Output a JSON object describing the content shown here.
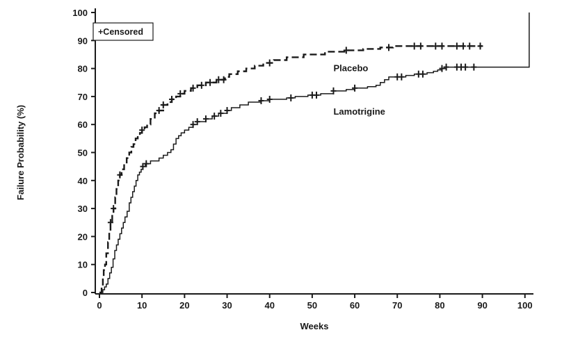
{
  "colors": {
    "line": "#1a1a1a",
    "background": "#ffffff"
  },
  "chart_data": {
    "type": "line",
    "title": "",
    "xlabel": "Weeks",
    "ylabel": "Failure Probability (%)",
    "xlim": [
      0,
      102
    ],
    "ylim": [
      0,
      100
    ],
    "xticks": [
      0,
      10,
      20,
      30,
      40,
      50,
      60,
      70,
      80,
      90,
      100
    ],
    "yticks": [
      0,
      10,
      20,
      30,
      40,
      50,
      60,
      70,
      80,
      90,
      100
    ],
    "grid": false,
    "legend": {
      "position": "top-left",
      "censored_label": "+Censored"
    },
    "series": [
      {
        "name": "Placebo",
        "style": "dashed",
        "label": "Placebo",
        "label_pos": [
          55,
          79
        ],
        "points": [
          [
            0,
            0
          ],
          [
            0.5,
            2
          ],
          [
            0.8,
            5
          ],
          [
            1,
            8
          ],
          [
            1.3,
            10
          ],
          [
            1.6,
            14
          ],
          [
            2,
            18
          ],
          [
            2.3,
            22
          ],
          [
            2.6,
            25
          ],
          [
            3,
            28
          ],
          [
            3.3,
            30
          ],
          [
            3.7,
            34
          ],
          [
            4,
            37
          ],
          [
            4.4,
            40
          ],
          [
            4.8,
            42
          ],
          [
            5.2,
            44
          ],
          [
            5.8,
            46
          ],
          [
            6.4,
            48
          ],
          [
            7,
            50
          ],
          [
            7.5,
            52
          ],
          [
            8,
            53
          ],
          [
            8.5,
            55
          ],
          [
            9,
            56
          ],
          [
            9.5,
            57
          ],
          [
            10,
            58
          ],
          [
            10.6,
            59
          ],
          [
            11.2,
            60
          ],
          [
            12,
            62
          ],
          [
            13,
            64
          ],
          [
            14,
            65
          ],
          [
            15,
            67
          ],
          [
            16,
            68
          ],
          [
            17,
            69
          ],
          [
            18,
            70
          ],
          [
            19,
            71
          ],
          [
            20,
            72
          ],
          [
            21.5,
            73
          ],
          [
            23,
            74
          ],
          [
            25,
            75
          ],
          [
            27.5,
            76
          ],
          [
            29.5,
            77
          ],
          [
            30.5,
            78
          ],
          [
            32.5,
            79
          ],
          [
            34.5,
            80
          ],
          [
            36.5,
            81
          ],
          [
            38.5,
            82
          ],
          [
            41,
            83
          ],
          [
            44,
            84
          ],
          [
            48,
            85
          ],
          [
            53,
            86
          ],
          [
            58,
            86.5
          ],
          [
            62,
            87
          ],
          [
            66,
            87.5
          ],
          [
            69,
            88
          ],
          [
            90,
            88
          ]
        ],
        "censors": [
          [
            2.6,
            25
          ],
          [
            3.3,
            30
          ],
          [
            4.8,
            42
          ],
          [
            10,
            58
          ],
          [
            14,
            65
          ],
          [
            15,
            67
          ],
          [
            17,
            69
          ],
          [
            19,
            71
          ],
          [
            22,
            73
          ],
          [
            24,
            74
          ],
          [
            26,
            75
          ],
          [
            28,
            76
          ],
          [
            29.2,
            76
          ],
          [
            40,
            82
          ],
          [
            58,
            86.5
          ],
          [
            68,
            87.5
          ],
          [
            74,
            88
          ],
          [
            75.5,
            88
          ],
          [
            79,
            88
          ],
          [
            80.5,
            88
          ],
          [
            84,
            88
          ],
          [
            85.5,
            88
          ],
          [
            87,
            88
          ],
          [
            89.5,
            88
          ]
        ]
      },
      {
        "name": "Lamotrigine",
        "style": "solid",
        "label": "Lamotrigine",
        "label_pos": [
          55,
          63.5
        ],
        "points": [
          [
            0,
            0
          ],
          [
            0.8,
            1
          ],
          [
            1.2,
            2
          ],
          [
            1.6,
            3
          ],
          [
            2,
            5
          ],
          [
            2.4,
            7
          ],
          [
            2.8,
            9
          ],
          [
            3.2,
            12
          ],
          [
            3.6,
            15
          ],
          [
            4,
            17
          ],
          [
            4.4,
            19
          ],
          [
            4.8,
            21
          ],
          [
            5.2,
            23
          ],
          [
            5.6,
            25
          ],
          [
            6,
            27
          ],
          [
            6.5,
            29
          ],
          [
            7,
            32
          ],
          [
            7.4,
            34
          ],
          [
            7.8,
            36
          ],
          [
            8.2,
            38
          ],
          [
            8.6,
            40
          ],
          [
            9,
            42
          ],
          [
            9.4,
            43
          ],
          [
            9.8,
            44
          ],
          [
            10.2,
            45
          ],
          [
            10.8,
            46
          ],
          [
            12,
            47
          ],
          [
            14,
            48
          ],
          [
            15,
            49
          ],
          [
            16,
            50
          ],
          [
            16.8,
            51
          ],
          [
            17.4,
            53
          ],
          [
            18,
            55
          ],
          [
            18.6,
            56
          ],
          [
            19.2,
            57
          ],
          [
            20,
            58
          ],
          [
            21,
            59
          ],
          [
            22,
            60
          ],
          [
            23,
            61
          ],
          [
            25,
            62
          ],
          [
            26.5,
            63
          ],
          [
            28,
            64
          ],
          [
            30,
            65
          ],
          [
            31,
            66
          ],
          [
            33,
            67
          ],
          [
            35,
            68
          ],
          [
            38,
            68.5
          ],
          [
            40,
            69
          ],
          [
            44,
            69.5
          ],
          [
            46,
            70
          ],
          [
            49,
            70.5
          ],
          [
            52,
            71
          ],
          [
            55,
            72
          ],
          [
            58,
            72.5
          ],
          [
            60,
            73
          ],
          [
            63,
            73.5
          ],
          [
            65,
            74
          ],
          [
            66,
            75
          ],
          [
            67,
            76
          ],
          [
            68,
            77
          ],
          [
            72,
            77.5
          ],
          [
            74,
            78
          ],
          [
            77,
            78.5
          ],
          [
            78.5,
            79
          ],
          [
            79.5,
            79.5
          ],
          [
            80.5,
            80
          ],
          [
            81.5,
            80.5
          ],
          [
            100.5,
            80.5
          ],
          [
            101,
            100
          ]
        ],
        "censors": [
          [
            10.2,
            45
          ],
          [
            11,
            46
          ],
          [
            22,
            60
          ],
          [
            23,
            61
          ],
          [
            25,
            62
          ],
          [
            27,
            63
          ],
          [
            28.5,
            64
          ],
          [
            30,
            65
          ],
          [
            38,
            68.5
          ],
          [
            40,
            69
          ],
          [
            45,
            69.5
          ],
          [
            50,
            70.5
          ],
          [
            51,
            70.5
          ],
          [
            55,
            72
          ],
          [
            60,
            73
          ],
          [
            70,
            77
          ],
          [
            71,
            77
          ],
          [
            75,
            78
          ],
          [
            76,
            78
          ],
          [
            80.5,
            80
          ],
          [
            81.5,
            80.5
          ],
          [
            84,
            80.5
          ],
          [
            85,
            80.5
          ],
          [
            86,
            80.5
          ],
          [
            88,
            80.5
          ]
        ]
      }
    ]
  }
}
